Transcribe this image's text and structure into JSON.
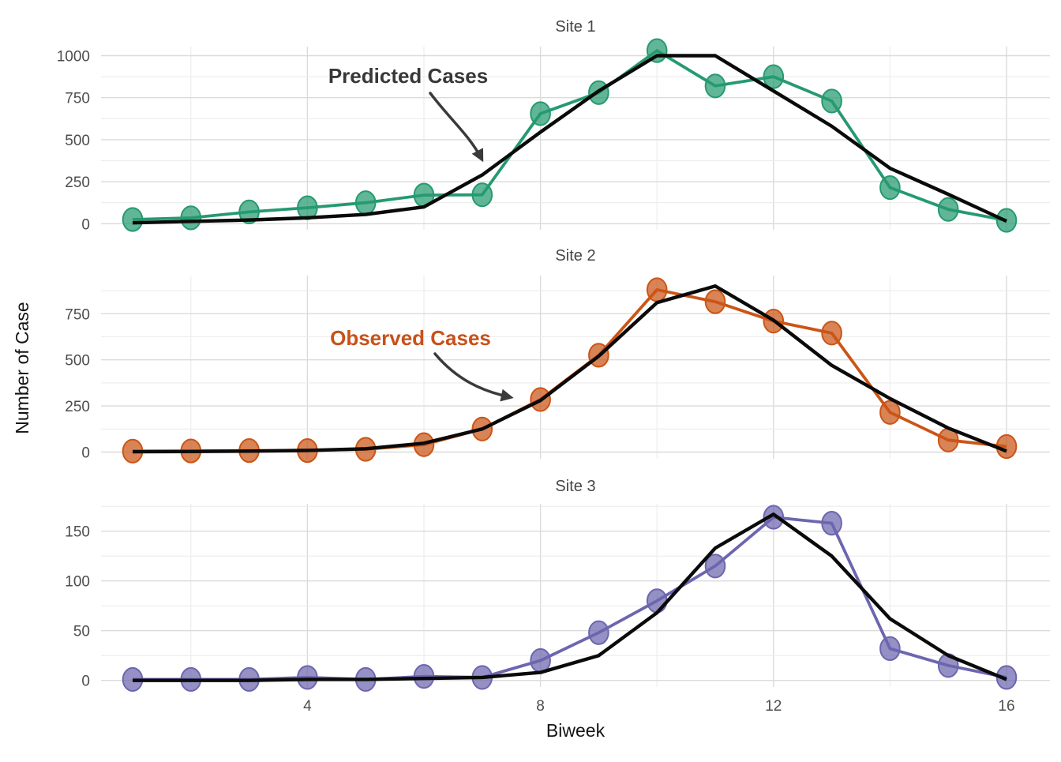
{
  "figure": {
    "x_axis": {
      "label": "Biweek",
      "ticks": [
        4,
        8,
        12,
        16
      ],
      "range": [
        1,
        16
      ]
    },
    "y_axis": {
      "label": "Number of Case"
    },
    "annotations": [
      {
        "id": "predicted",
        "text": "Predicted Cases",
        "color": "#383838",
        "points_to": "predicted line, Site 1, near biweek 7"
      },
      {
        "id": "observed",
        "text": "Observed Cases",
        "color": "#c8511b",
        "points_to": "observed line, Site 2, near biweek 8"
      }
    ],
    "background": "#ffffff",
    "grid": "on"
  },
  "chart_data": [
    {
      "type": "line",
      "title": "Site 1",
      "x": [
        1,
        2,
        3,
        4,
        5,
        6,
        7,
        8,
        9,
        10,
        11,
        12,
        13,
        14,
        15,
        16
      ],
      "series": [
        {
          "name": "Observed Cases",
          "color": "#259a70",
          "points": true,
          "values": [
            25,
            35,
            70,
            95,
            125,
            170,
            172,
            655,
            780,
            1030,
            820,
            875,
            730,
            215,
            85,
            20
          ]
        },
        {
          "name": "Predicted Cases",
          "color": "#0a0a0a",
          "points": false,
          "values": [
            5,
            14,
            22,
            35,
            55,
            100,
            290,
            545,
            790,
            1000,
            1000,
            790,
            580,
            330,
            175,
            15
          ]
        }
      ],
      "y_ticks": [
        0,
        250,
        500,
        750,
        1000
      ],
      "ylim": [
        0,
        1055
      ],
      "xlim": [
        1,
        16
      ]
    },
    {
      "type": "line",
      "title": "Site 2",
      "x": [
        1,
        2,
        3,
        4,
        5,
        6,
        7,
        8,
        9,
        10,
        11,
        12,
        13,
        14,
        15,
        16
      ],
      "series": [
        {
          "name": "Observed Cases",
          "color": "#cb5516",
          "points": true,
          "values": [
            5,
            6,
            8,
            8,
            15,
            40,
            125,
            285,
            525,
            880,
            815,
            710,
            645,
            215,
            65,
            30
          ]
        },
        {
          "name": "Predicted Cases",
          "color": "#0a0a0a",
          "points": false,
          "values": [
            2,
            3,
            5,
            9,
            18,
            48,
            125,
            280,
            520,
            810,
            900,
            715,
            470,
            290,
            130,
            5
          ]
        }
      ],
      "y_ticks": [
        0,
        250,
        500,
        750
      ],
      "ylim": [
        0,
        955
      ],
      "xlim": [
        1,
        16
      ]
    },
    {
      "type": "line",
      "title": "Site 3",
      "x": [
        1,
        2,
        3,
        4,
        5,
        6,
        7,
        8,
        9,
        10,
        11,
        12,
        13,
        14,
        15,
        16
      ],
      "series": [
        {
          "name": "Observed Cases",
          "color": "#6c66af",
          "points": true,
          "values": [
            1,
            1,
            1,
            3,
            1,
            4,
            3,
            20,
            48,
            80,
            115,
            164,
            158,
            32,
            15,
            3
          ]
        },
        {
          "name": "Predicted Cases",
          "color": "#0a0a0a",
          "points": false,
          "values": [
            0,
            0,
            0,
            1,
            1,
            2,
            3,
            8,
            25,
            68,
            133,
            167,
            125,
            62,
            25,
            1
          ]
        }
      ],
      "y_ticks": [
        0,
        50,
        100,
        150
      ],
      "ylim": [
        0,
        177
      ],
      "xlim": [
        1,
        16
      ]
    }
  ]
}
